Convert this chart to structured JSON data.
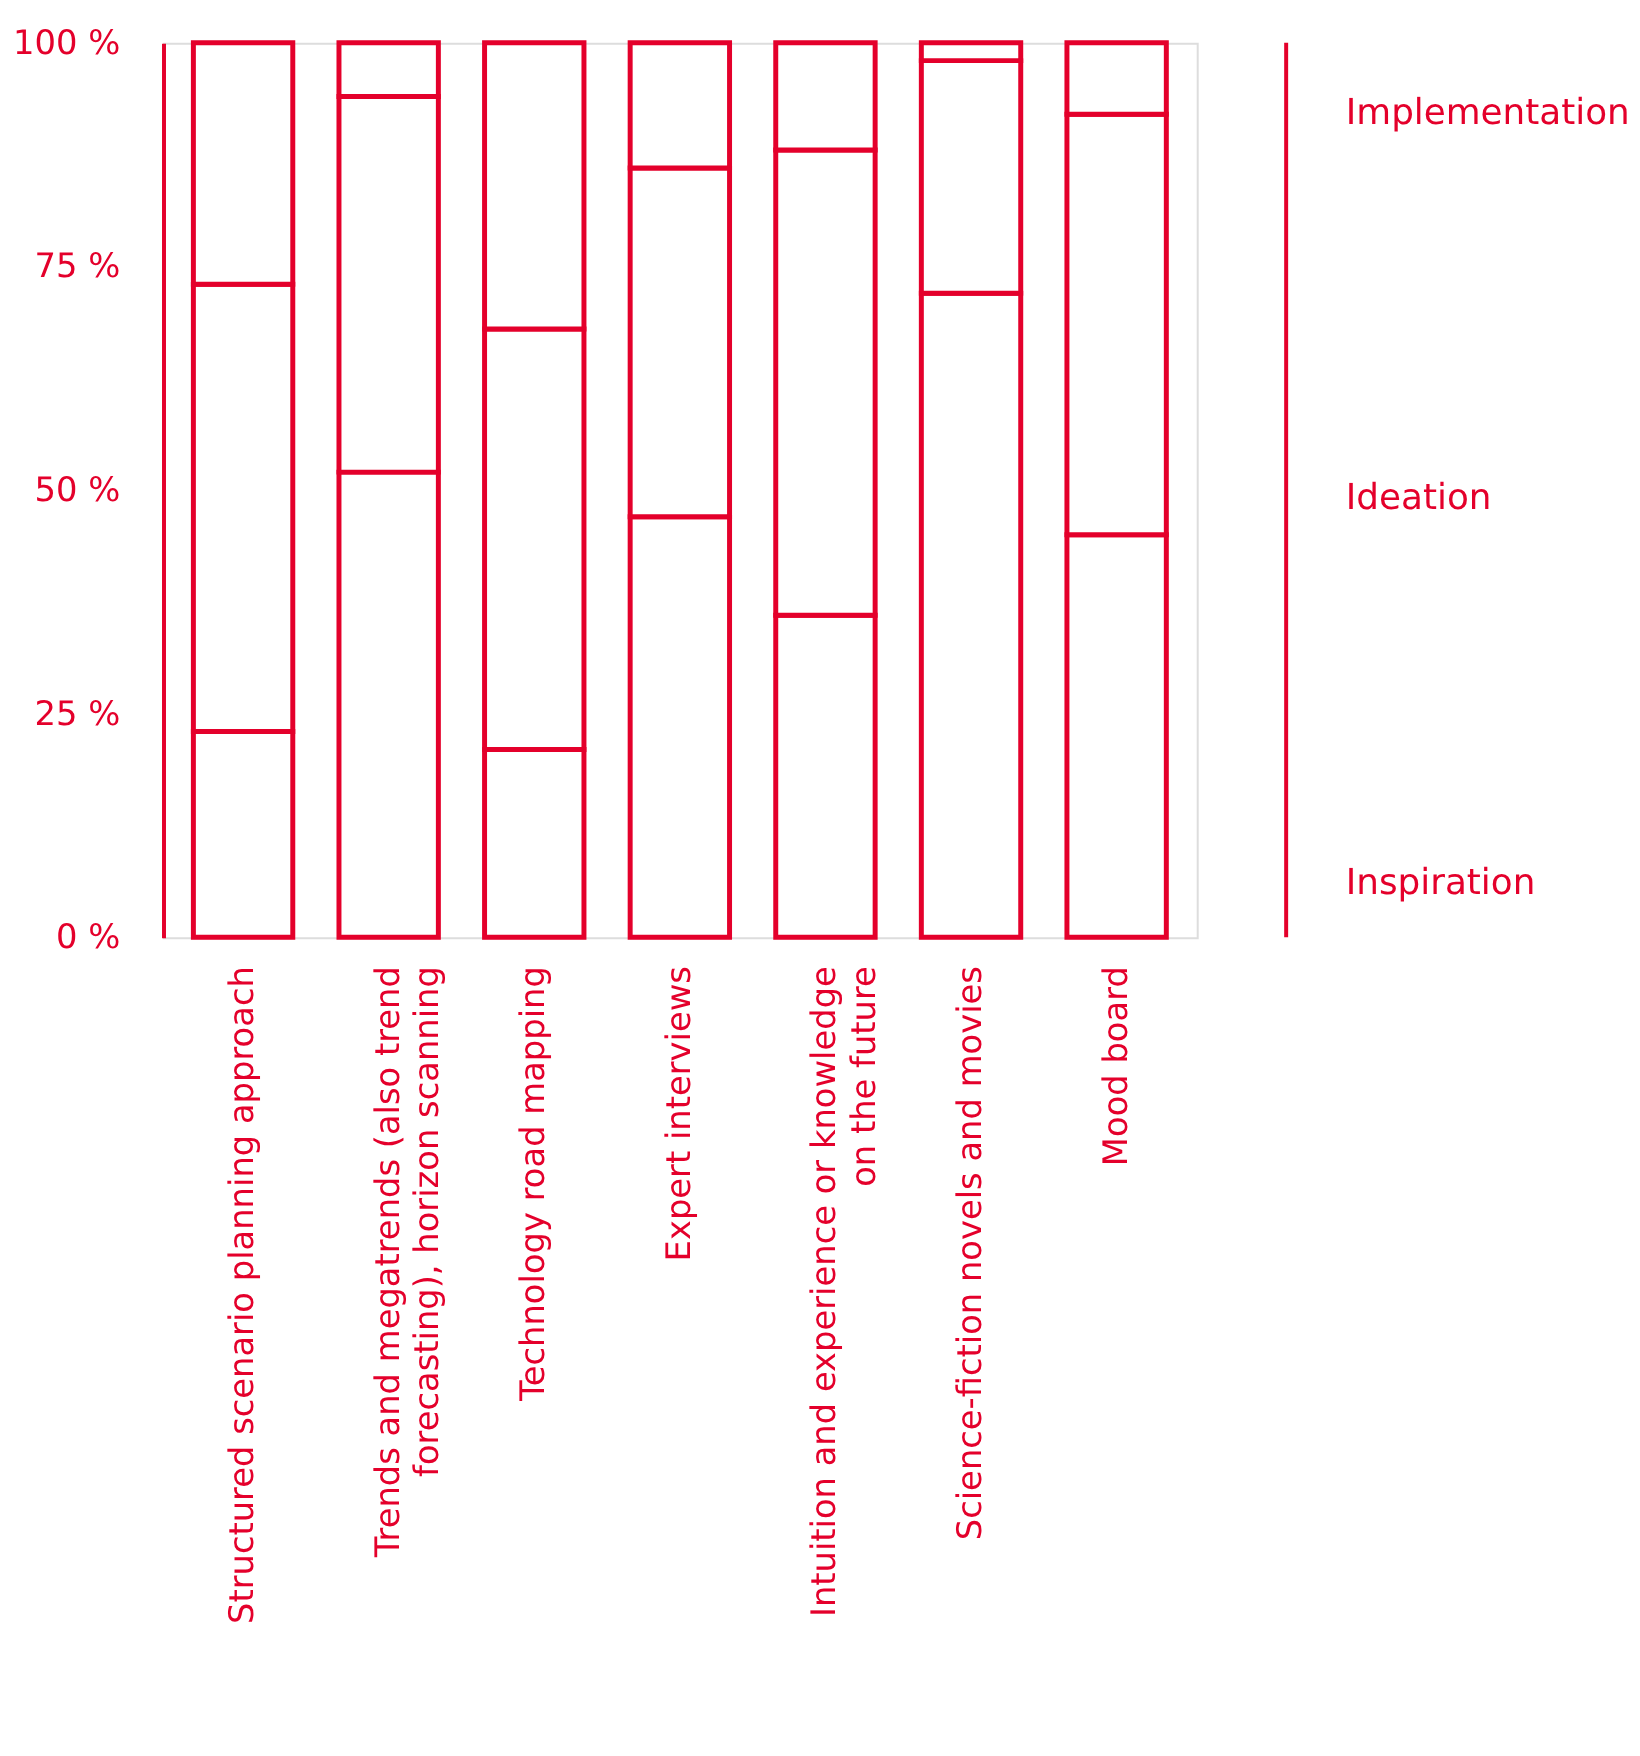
{
  "chart_data": {
    "type": "bar",
    "stacked": true,
    "legend": false,
    "categories": [
      "Structured scenario planning approach",
      "Trends and megatrends (also trend forecasting), horizon scanning",
      "Technology road mapping",
      "Expert interviews",
      "Intuition and experience or knowledge on the future",
      "Science-fiction novels and movies",
      "Mood board"
    ],
    "series": [
      {
        "name": "Inspiration",
        "color": "#e4002b",
        "values": [
          23,
          52,
          21,
          47,
          36,
          72,
          45
        ]
      },
      {
        "name": "Ideation",
        "color": "#e4002b",
        "values": [
          50,
          42,
          47,
          39,
          52,
          26,
          47
        ]
      },
      {
        "name": "Implementation",
        "color": "#e4002b",
        "values": [
          27,
          6,
          32,
          14,
          12,
          2,
          8
        ]
      }
    ],
    "ylim": [
      0,
      100
    ],
    "yticks": [
      {
        "value": 0,
        "label": "0 %"
      },
      {
        "value": 25,
        "label": "25 %"
      },
      {
        "value": 50,
        "label": "50 %"
      },
      {
        "value": 75,
        "label": "75 %"
      },
      {
        "value": 100,
        "label": "100 %"
      }
    ],
    "grid": false
  }
}
